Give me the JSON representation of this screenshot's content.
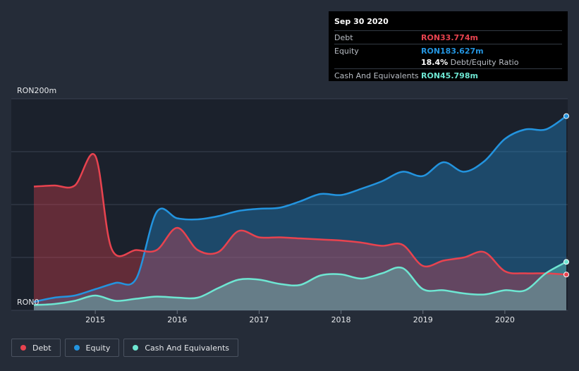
{
  "tooltip": {
    "date": "Sep 30 2020",
    "debt_label": "Debt",
    "debt_value": "RON33.774m",
    "equity_label": "Equity",
    "equity_value": "RON183.627m",
    "ratio_value": "18.4%",
    "ratio_label": "Debt/Equity Ratio",
    "cash_label": "Cash And Equivalents",
    "cash_value": "RON45.798m"
  },
  "colors": {
    "debt": "#e8434f",
    "equity": "#2394df",
    "cash": "#6ee6d2",
    "background": "#252c38",
    "plot_background": "#1b212c"
  },
  "chart_data": {
    "type": "area",
    "y_unit": "RON m",
    "ylim": [
      0,
      200
    ],
    "y_tick_labels": [
      "RON0",
      "RON200m"
    ],
    "x_tick_labels": [
      "2015",
      "2016",
      "2017",
      "2018",
      "2019",
      "2020"
    ],
    "x_ticks": [
      2015,
      2016,
      2017,
      2018,
      2019,
      2020
    ],
    "xlim": [
      2014.25,
      2020.75
    ],
    "grid": true,
    "legend_position": "bottom-left",
    "series": [
      {
        "name": "Debt",
        "points": [
          [
            2014.25,
            117
          ],
          [
            2014.5,
            118
          ],
          [
            2014.75,
            118
          ],
          [
            2015.0,
            146
          ],
          [
            2015.2,
            58
          ],
          [
            2015.5,
            57
          ],
          [
            2015.75,
            57
          ],
          [
            2016.0,
            78
          ],
          [
            2016.25,
            57
          ],
          [
            2016.5,
            55
          ],
          [
            2016.75,
            75
          ],
          [
            2017.0,
            69
          ],
          [
            2017.25,
            69
          ],
          [
            2017.5,
            68
          ],
          [
            2017.75,
            67
          ],
          [
            2018.0,
            66
          ],
          [
            2018.25,
            64
          ],
          [
            2018.5,
            61
          ],
          [
            2018.75,
            62
          ],
          [
            2019.0,
            42
          ],
          [
            2019.25,
            47
          ],
          [
            2019.5,
            50
          ],
          [
            2019.75,
            55
          ],
          [
            2020.0,
            37
          ],
          [
            2020.25,
            35
          ],
          [
            2020.5,
            35
          ],
          [
            2020.75,
            33.8
          ]
        ]
      },
      {
        "name": "Equity",
        "points": [
          [
            2014.25,
            8
          ],
          [
            2014.5,
            12
          ],
          [
            2014.75,
            14
          ],
          [
            2015.0,
            20
          ],
          [
            2015.25,
            26
          ],
          [
            2015.5,
            30
          ],
          [
            2015.75,
            93
          ],
          [
            2016.0,
            87
          ],
          [
            2016.25,
            86
          ],
          [
            2016.5,
            89
          ],
          [
            2016.75,
            94
          ],
          [
            2017.0,
            96
          ],
          [
            2017.25,
            97
          ],
          [
            2017.5,
            103
          ],
          [
            2017.75,
            110
          ],
          [
            2018.0,
            109
          ],
          [
            2018.25,
            115
          ],
          [
            2018.5,
            122
          ],
          [
            2018.75,
            131
          ],
          [
            2019.0,
            127
          ],
          [
            2019.25,
            140
          ],
          [
            2019.5,
            131
          ],
          [
            2019.75,
            141
          ],
          [
            2020.0,
            162
          ],
          [
            2020.25,
            171
          ],
          [
            2020.5,
            171
          ],
          [
            2020.75,
            183.6
          ]
        ]
      },
      {
        "name": "Cash And Equivalents",
        "points": [
          [
            2014.25,
            5
          ],
          [
            2014.5,
            6
          ],
          [
            2014.75,
            9
          ],
          [
            2015.0,
            14
          ],
          [
            2015.25,
            9
          ],
          [
            2015.5,
            11
          ],
          [
            2015.75,
            13
          ],
          [
            2016.0,
            12
          ],
          [
            2016.25,
            12
          ],
          [
            2016.5,
            21
          ],
          [
            2016.75,
            29
          ],
          [
            2017.0,
            29
          ],
          [
            2017.25,
            25
          ],
          [
            2017.5,
            24
          ],
          [
            2017.75,
            33
          ],
          [
            2018.0,
            34
          ],
          [
            2018.25,
            30
          ],
          [
            2018.5,
            35
          ],
          [
            2018.75,
            40
          ],
          [
            2019.0,
            20
          ],
          [
            2019.25,
            19
          ],
          [
            2019.5,
            16
          ],
          [
            2019.75,
            15
          ],
          [
            2020.0,
            19
          ],
          [
            2020.25,
            19
          ],
          [
            2020.5,
            35
          ],
          [
            2020.75,
            45.8
          ]
        ]
      }
    ]
  }
}
